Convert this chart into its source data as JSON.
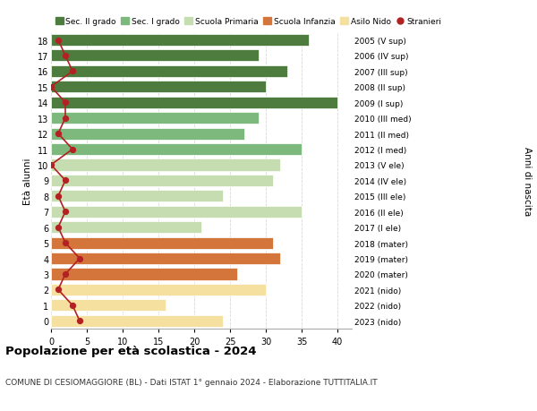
{
  "ages": [
    18,
    17,
    16,
    15,
    14,
    13,
    12,
    11,
    10,
    9,
    8,
    7,
    6,
    5,
    4,
    3,
    2,
    1,
    0
  ],
  "right_labels": [
    "2005 (V sup)",
    "2006 (IV sup)",
    "2007 (III sup)",
    "2008 (II sup)",
    "2009 (I sup)",
    "2010 (III med)",
    "2011 (II med)",
    "2012 (I med)",
    "2013 (V ele)",
    "2014 (IV ele)",
    "2015 (III ele)",
    "2016 (II ele)",
    "2017 (I ele)",
    "2018 (mater)",
    "2019 (mater)",
    "2020 (mater)",
    "2021 (nido)",
    "2022 (nido)",
    "2023 (nido)"
  ],
  "bar_values": [
    36,
    29,
    33,
    30,
    40,
    29,
    27,
    35,
    32,
    31,
    24,
    35,
    21,
    31,
    32,
    26,
    30,
    16,
    24
  ],
  "bar_colors": [
    "#4e7c3f",
    "#4e7c3f",
    "#4e7c3f",
    "#4e7c3f",
    "#4e7c3f",
    "#7db87d",
    "#7db87d",
    "#7db87d",
    "#c5ddb0",
    "#c5ddb0",
    "#c5ddb0",
    "#c5ddb0",
    "#c5ddb0",
    "#d4763b",
    "#d4763b",
    "#d4763b",
    "#f5e0a0",
    "#f5e0a0",
    "#f5e0a0"
  ],
  "stranieri_values": [
    1,
    2,
    3,
    0,
    2,
    2,
    1,
    3,
    0,
    2,
    1,
    2,
    1,
    2,
    4,
    2,
    1,
    3,
    4
  ],
  "legend_labels": [
    "Sec. II grado",
    "Sec. I grado",
    "Scuola Primaria",
    "Scuola Infanzia",
    "Asilo Nido",
    "Stranieri"
  ],
  "legend_colors": [
    "#4e7c3f",
    "#7db87d",
    "#c5ddb0",
    "#d4763b",
    "#f5e0a0",
    "#b22222"
  ],
  "title": "Popolazione per età scolastica - 2024",
  "subtitle": "COMUNE DI CESIOMAGGIORE (BL) - Dati ISTAT 1° gennaio 2024 - Elaborazione TUTTITALIA.IT",
  "ylabel_left": "Età alunni",
  "ylabel_right": "Anni di nascita",
  "xlim": [
    0,
    42
  ],
  "ylim": [
    -0.5,
    18.5
  ],
  "bg_color": "#ffffff",
  "grid_color": "#d8d8d8"
}
